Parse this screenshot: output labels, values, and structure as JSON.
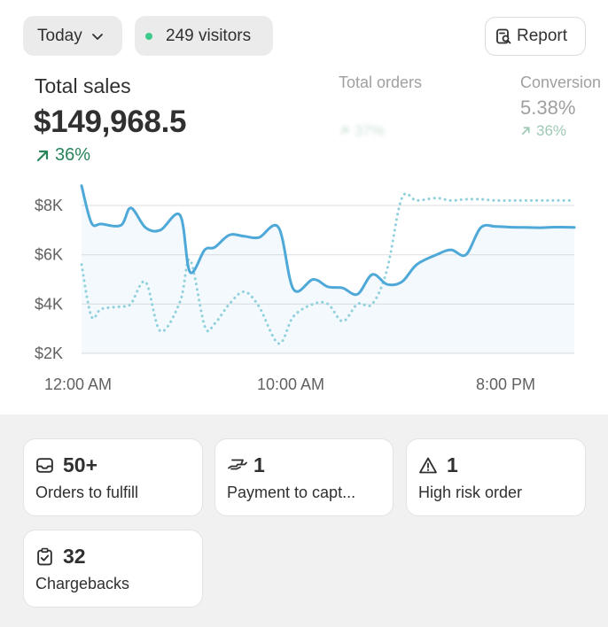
{
  "header": {
    "date_filter": "Today",
    "visitors": "249 visitors",
    "report_label": "Report"
  },
  "metrics": {
    "total_sales": {
      "label": "Total sales",
      "value": "$149,968.5",
      "delta": "36%"
    },
    "total_orders": {
      "label": "Total orders",
      "value": "",
      "delta": "37%"
    },
    "conversion": {
      "label": "Conversion",
      "value": "5.38%",
      "delta": "36%"
    }
  },
  "chart_data": {
    "type": "line",
    "x_ticks": [
      "12:00 AM",
      "10:00 AM",
      "8:00 PM"
    ],
    "y_ticks": [
      "$2K",
      "$4K",
      "$6K",
      "$8K"
    ],
    "ylim": [
      2000,
      8000
    ],
    "grid": true,
    "x": [
      0,
      0.02,
      0.04,
      0.08,
      0.1,
      0.13,
      0.16,
      0.2,
      0.22,
      0.25,
      0.27,
      0.3,
      0.33,
      0.36,
      0.4,
      0.43,
      0.47,
      0.5,
      0.53,
      0.56,
      0.59,
      0.62,
      0.65,
      0.68,
      0.72,
      0.75,
      0.78,
      0.81,
      0.84,
      0.87,
      0.9,
      0.93,
      0.96,
      1.0
    ],
    "series": [
      {
        "values": [
          8800,
          7300,
          7250,
          7200,
          7900,
          7100,
          7000,
          7600,
          5300,
          6200,
          6300,
          6800,
          6750,
          6700,
          7100,
          4600,
          5000,
          4700,
          4650,
          4400,
          5200,
          4800,
          4900,
          5600,
          6000,
          6200,
          6000,
          7100,
          7150,
          7120,
          7110,
          7100,
          7120,
          7110
        ]
      },
      {
        "values": [
          5600,
          3500,
          3800,
          3900,
          4000,
          4900,
          2900,
          4100,
          5800,
          3100,
          3200,
          4000,
          4500,
          3900,
          2400,
          3500,
          4000,
          4000,
          3300,
          4000,
          4000,
          5400,
          8300,
          8200,
          8300,
          8200,
          8250,
          8250,
          8200,
          8200,
          8200,
          8200,
          8200,
          8200
        ]
      }
    ]
  },
  "cards": [
    {
      "icon": "inbox-icon",
      "count": "50+",
      "label": "Orders to fulfill"
    },
    {
      "icon": "payment-hand-icon",
      "count": "1",
      "label": "Payment to capt..."
    },
    {
      "icon": "alert-triangle-icon",
      "count": "1",
      "label": "High risk order"
    },
    {
      "icon": "clipboard-check-icon",
      "count": "32",
      "label": "Chargebacks"
    }
  ],
  "colors": {
    "primary_line": "#4ea8d8",
    "secondary_line": "#8ed0dc",
    "positive": "#29845a",
    "status_dot": "#3fca8d"
  }
}
